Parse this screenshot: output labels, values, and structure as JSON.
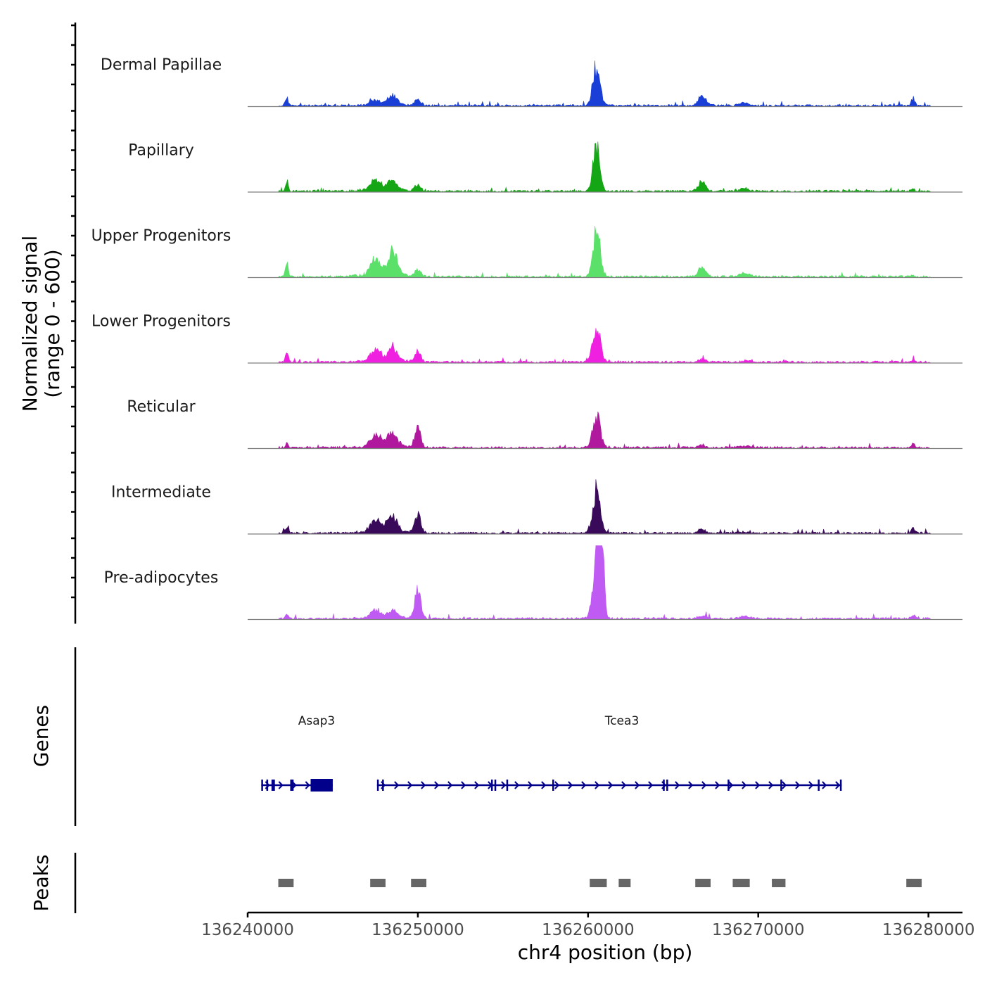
{
  "chart_data": {
    "type": "area",
    "title": "",
    "chromosome": "chr4",
    "xlabel": "chr4 position (bp)",
    "ylabel": "Normalized signal",
    "ylabel_range": "(range 0 - 600)",
    "xlim": [
      136240000,
      136282000
    ],
    "ylim": [
      0,
      600
    ],
    "x_ticks": [
      136240000,
      136250000,
      136260000,
      136270000,
      136280000
    ],
    "peak_centers": [
      136242300,
      136247500,
      136248500,
      136250000,
      136260500,
      136260800,
      136266700,
      136269200,
      136279100
    ],
    "series": [
      {
        "name": "Dermal Papillae",
        "color": "#1a3fd6",
        "values": [
          120,
          80,
          140,
          100,
          560,
          0,
          160,
          40,
          110
        ]
      },
      {
        "name": "Papillary",
        "color": "#14a614",
        "values": [
          150,
          160,
          130,
          90,
          640,
          0,
          150,
          40,
          30
        ]
      },
      {
        "name": "Upper Progenitors",
        "color": "#5be06a",
        "values": [
          180,
          240,
          320,
          100,
          720,
          0,
          130,
          50,
          20
        ]
      },
      {
        "name": "Lower Progenitors",
        "color": "#f020e0",
        "values": [
          150,
          170,
          200,
          160,
          580,
          0,
          40,
          20,
          40
        ]
      },
      {
        "name": "Reticular",
        "color": "#b0189e",
        "values": [
          80,
          180,
          220,
          290,
          540,
          0,
          40,
          20,
          60
        ]
      },
      {
        "name": "Intermediate",
        "color": "#3a0a5a",
        "values": [
          90,
          200,
          220,
          270,
          650,
          0,
          60,
          20,
          80
        ]
      },
      {
        "name": "Pre-adipocytes",
        "color": "#bf5af2",
        "values": [
          50,
          120,
          110,
          440,
          1000,
          1000,
          50,
          40,
          60
        ]
      }
    ],
    "genes": [
      {
        "name": "Asap3",
        "start": 136240800,
        "end": 136245000,
        "strand": "+",
        "exons": [
          [
            136240800,
            136240900
          ],
          [
            136241100,
            136241200
          ],
          [
            136241400,
            136241600
          ],
          [
            136242500,
            136242700
          ],
          [
            136243700,
            136245000
          ]
        ]
      },
      {
        "name": "Tcea3",
        "start": 136247600,
        "end": 136274900,
        "strand": "+",
        "exons": [
          [
            136247600,
            136247700
          ],
          [
            136247900,
            136248000
          ],
          [
            136254300,
            136254400
          ],
          [
            136254500,
            136254600
          ],
          [
            136255200,
            136255300
          ],
          [
            136257900,
            136258000
          ],
          [
            136264400,
            136264500
          ],
          [
            136264600,
            136264700
          ],
          [
            136268200,
            136268300
          ],
          [
            136271300,
            136271400
          ],
          [
            136273500,
            136273600
          ],
          [
            136274800,
            136274900
          ]
        ]
      }
    ],
    "peaks": [
      {
        "start": 136241800,
        "end": 136242700
      },
      {
        "start": 136247200,
        "end": 136248100
      },
      {
        "start": 136249600,
        "end": 136250500
      },
      {
        "start": 136260100,
        "end": 136261100
      },
      {
        "start": 136261800,
        "end": 136262500
      },
      {
        "start": 136266300,
        "end": 136267200
      },
      {
        "start": 136268500,
        "end": 136269500
      },
      {
        "start": 136270800,
        "end": 136271600
      },
      {
        "start": 136278700,
        "end": 136279600
      }
    ],
    "panels": {
      "genes_label": "Genes",
      "peaks_label": "Peaks"
    }
  }
}
